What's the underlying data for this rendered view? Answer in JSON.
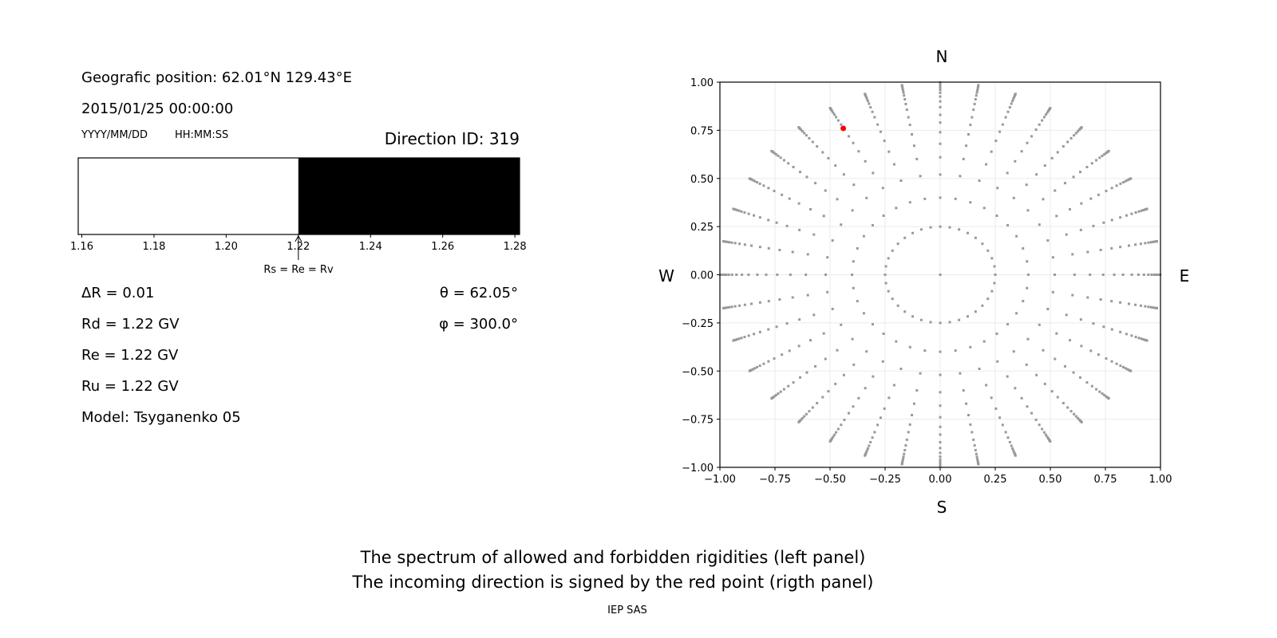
{
  "left_panel": {
    "position": "Geografic position: 62.01°N 129.43°E",
    "datetime": "2015/01/25 00:00:00",
    "date_format": "YYYY/MM/DD",
    "time_format": "HH:MM:SS",
    "direction_id": "Direction ID: 319",
    "marker_label": "Rs = Re = Rv",
    "delta_r": "ΔR = 0.01",
    "rd": "Rd = 1.22 GV",
    "re": "Re = 1.22 GV",
    "ru": "Ru = 1.22 GV",
    "model": "Model: Tsyganenko 05",
    "theta": "θ = 62.05°",
    "phi": "φ = 300.0°"
  },
  "right_panel": {
    "north": "N",
    "south": "S",
    "west": "W",
    "east": "E"
  },
  "captions": {
    "line1": "The spectrum of allowed and forbidden rigidities (left panel)",
    "line2": "The incoming direction is signed by the red point (rigth panel)",
    "credit": "IEP SAS"
  },
  "chart_data": [
    {
      "type": "bar",
      "xlim": [
        1.159,
        1.2813
      ],
      "xticks": [
        "1.16",
        "1.18",
        "1.20",
        "1.22",
        "1.24",
        "1.26",
        "1.28"
      ],
      "segments": [
        {
          "from": 1.159,
          "to": 1.22,
          "state": "allowed",
          "color": "#ffffff"
        },
        {
          "from": 1.22,
          "to": 1.2813,
          "state": "forbidden",
          "color": "#000000"
        }
      ],
      "marker_x": 1.22
    },
    {
      "type": "scatter",
      "xlim": [
        -1,
        1
      ],
      "ylim": [
        -1,
        1
      ],
      "xticks": [
        "−1.00",
        "−0.75",
        "−0.50",
        "−0.25",
        "0.00",
        "0.25",
        "0.50",
        "0.75",
        "1.00"
      ],
      "yticks": [
        "−1.00",
        "−0.75",
        "−0.50",
        "−0.25",
        "0.00",
        "0.25",
        "0.50",
        "0.75",
        "1.00"
      ],
      "grid": true,
      "point_color": "#999999",
      "azimuth_step_deg": 10,
      "ring_radii": [
        0.25,
        0.4,
        0.52,
        0.61,
        0.68,
        0.74,
        0.79,
        0.83,
        0.87,
        0.9,
        0.925,
        0.945,
        0.96,
        0.972,
        0.982,
        0.99,
        0.995,
        0.999
      ],
      "center_point": {
        "x": 0,
        "y": 0
      },
      "highlight": {
        "x": -0.44,
        "y": 0.76,
        "color": "#ff0000"
      }
    }
  ]
}
